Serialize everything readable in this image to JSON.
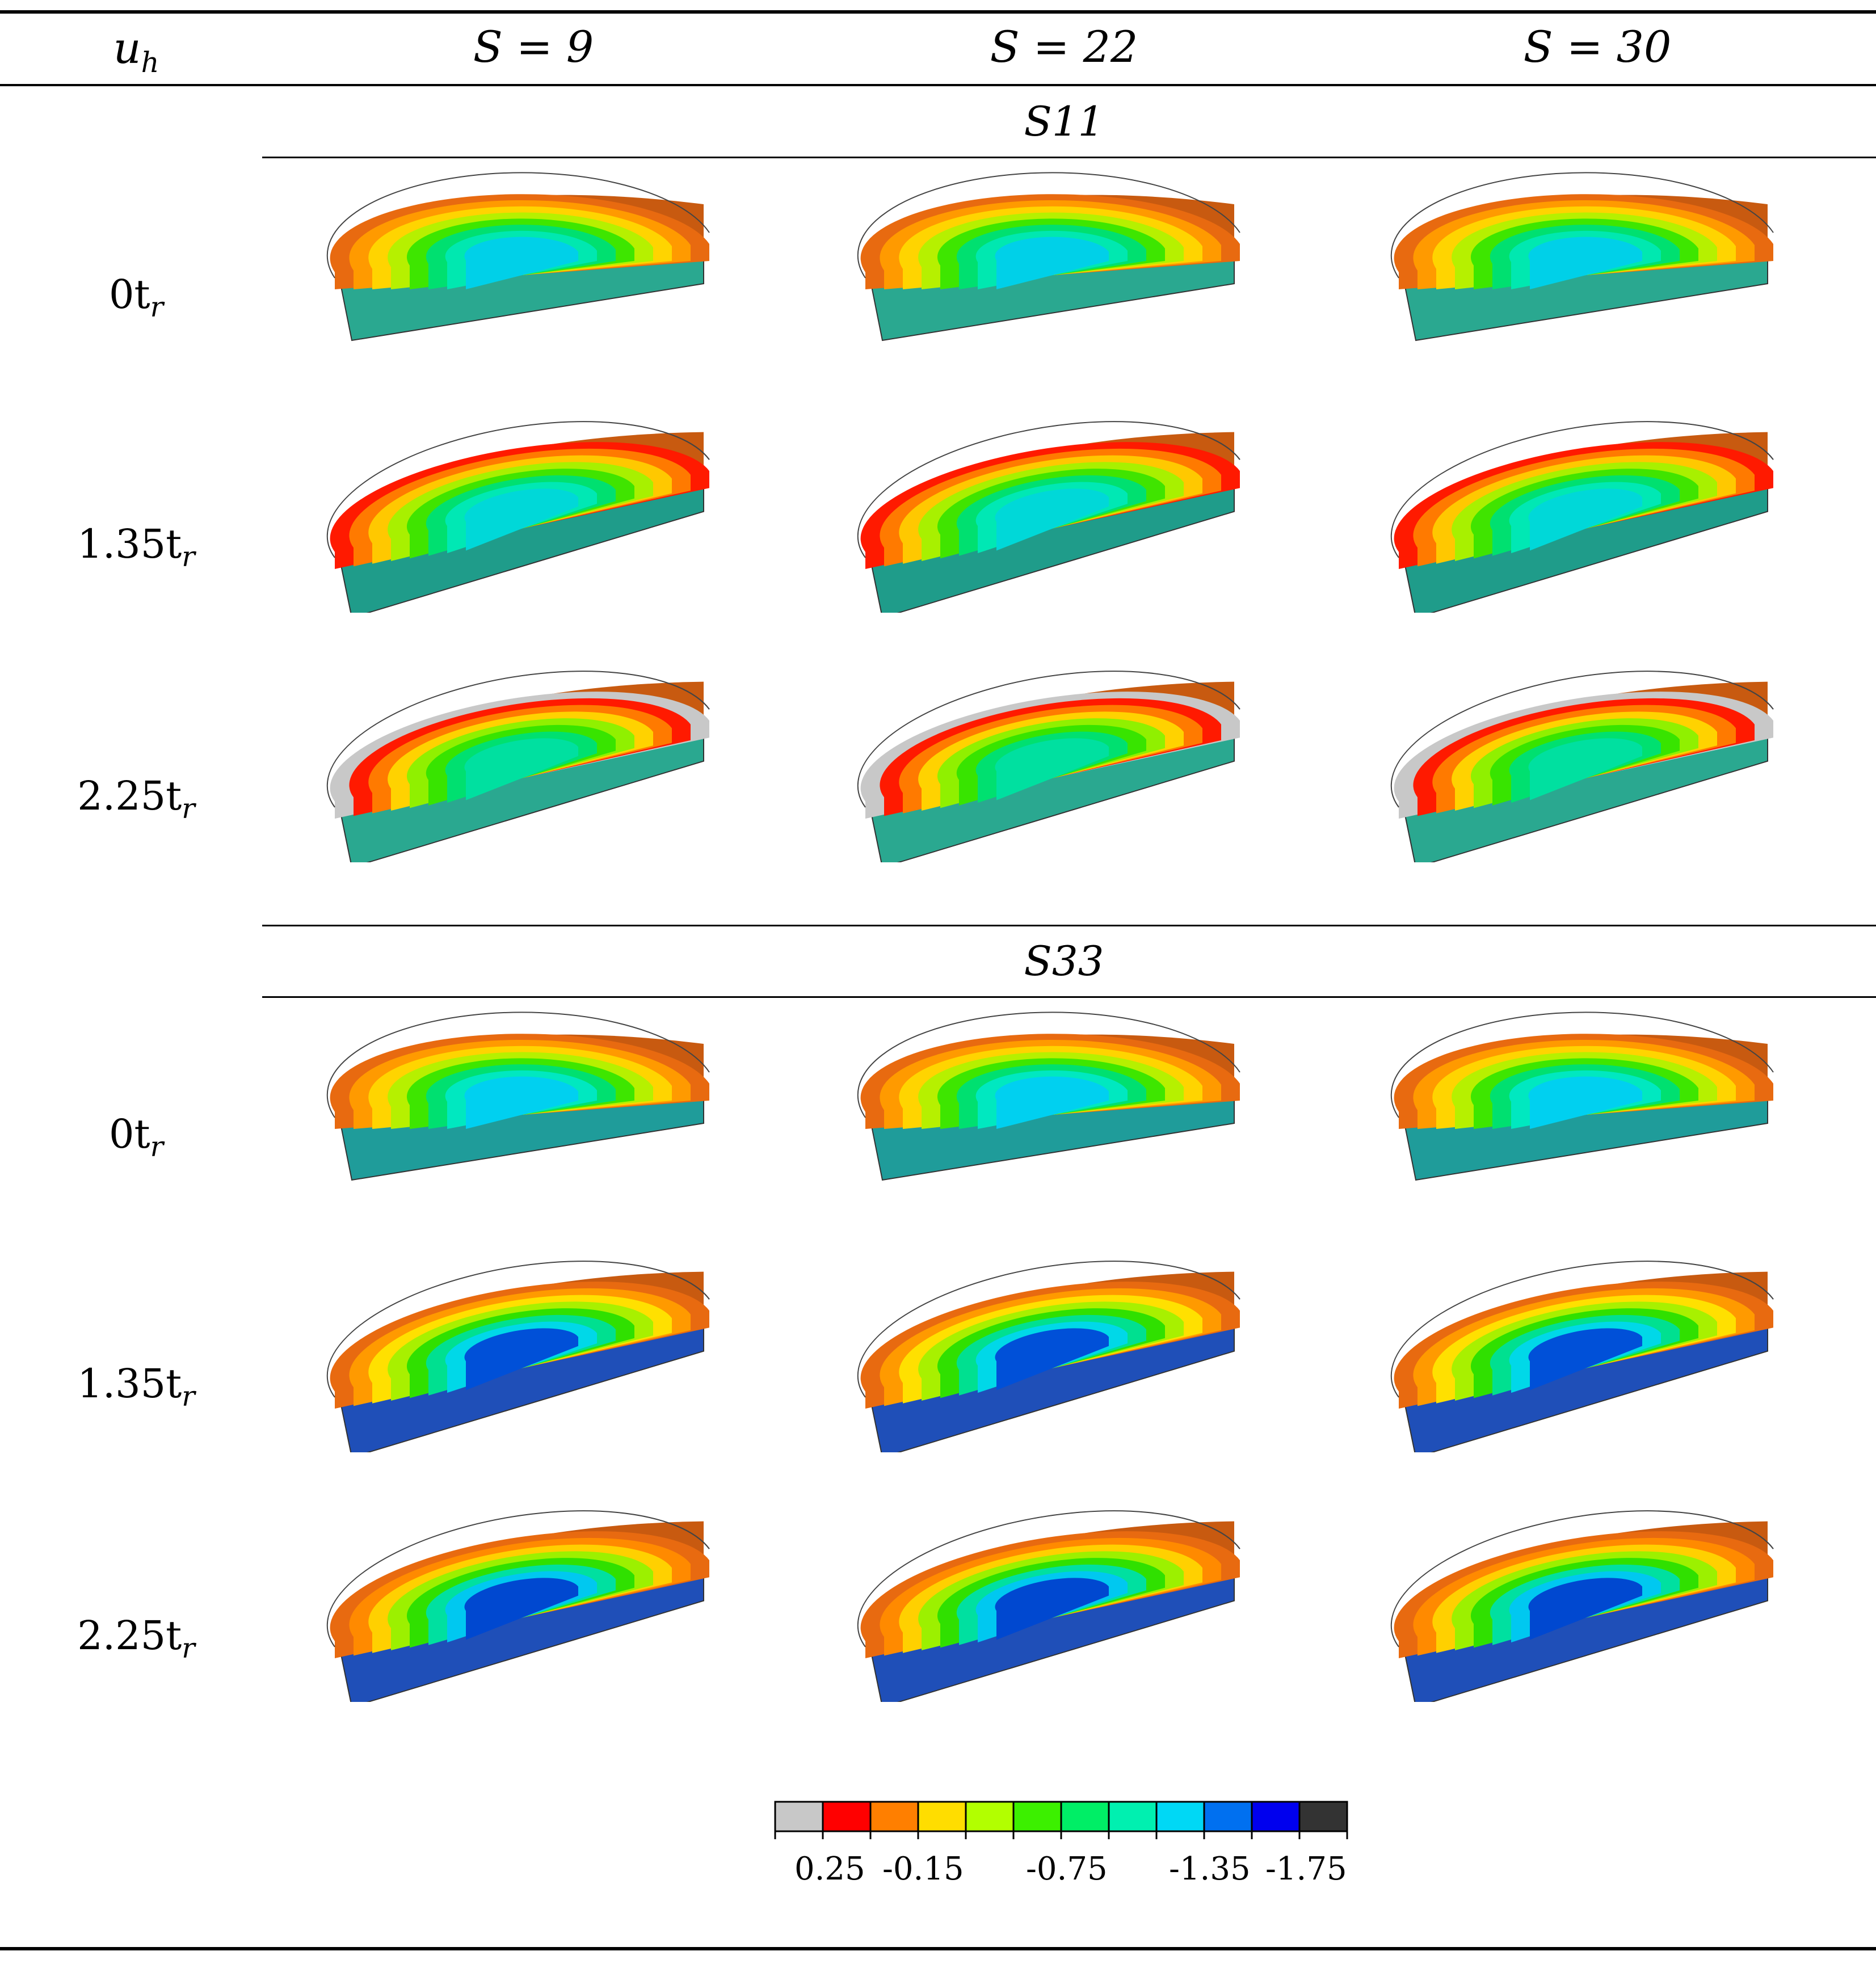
{
  "table": {
    "header": {
      "col0": "u_h",
      "col0_main": "u",
      "col0_sub": "h",
      "columns": [
        "S = 9",
        "S = 22",
        "S = 30"
      ]
    },
    "sections": [
      {
        "title": "S11",
        "rows": [
          {
            "label_main": "0t",
            "label_sub": "r"
          },
          {
            "label_main": "1.35t",
            "label_sub": "r"
          },
          {
            "label_main": "2.25t",
            "label_sub": "r"
          }
        ]
      },
      {
        "title": "S33",
        "rows": [
          {
            "label_main": "0t",
            "label_sub": "r"
          },
          {
            "label_main": "1.35t",
            "label_sub": "r"
          },
          {
            "label_main": "2.25t",
            "label_sub": "r"
          }
        ]
      }
    ]
  },
  "colorbar": {
    "colors": [
      "#c8c8c8",
      "#ff0000",
      "#ff7f00",
      "#ffdd00",
      "#b2ff00",
      "#3cf000",
      "#00ee66",
      "#00f0b0",
      "#00d8f5",
      "#0070f0",
      "#0000ee",
      "#333333"
    ],
    "tick_labels": [
      "0.25",
      "-0.15",
      "-0.75",
      "-1.35",
      "-1.75"
    ]
  }
}
